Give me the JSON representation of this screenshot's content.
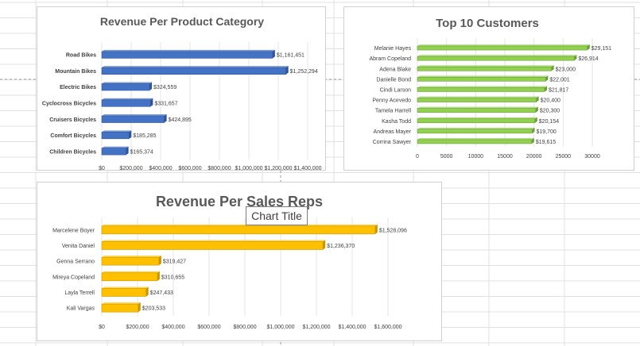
{
  "tooltip": {
    "label": "Chart Title"
  },
  "charts": [
    {
      "id": "product",
      "chart_data": {
        "type": "bar",
        "title": "Revenue Per Product Category",
        "categories": [
          "Road Bikes",
          "Mountain Bikes",
          "Electric Bikes",
          "Cyclocross Bicycles",
          "Cruisers Bicycles",
          "Comfort Bicycles",
          "Children Bicycles"
        ],
        "values": [
          1161451,
          1252294,
          324559,
          331657,
          424895,
          185285,
          165374
        ],
        "data_labels": [
          "$1,161,451",
          "$1,252,294",
          "$324,559",
          "$331,657",
          "$424,895",
          "$185,285",
          "$165,374"
        ],
        "ticks": [
          "$0",
          "$200,000",
          "$400,000",
          "$600,000",
          "$800,000",
          "$1,000,000",
          "$1,200,000",
          "$1,400,000"
        ],
        "xlim": [
          0,
          1400000
        ],
        "bar_color": "#4472c4",
        "bar_edge": "#2f5597"
      }
    },
    {
      "id": "customers",
      "chart_data": {
        "type": "bar",
        "title": "Top 10 Customers",
        "categories": [
          "Melanie Hayes",
          "Abram Copeland",
          "Adena Blake",
          "Danielle Bond",
          "Cindi Larson",
          "Penny Acevedo",
          "Tamela Harrell",
          "Kasha Todd",
          "Andreas Mayer",
          "Corrina Sawyer"
        ],
        "values": [
          29151,
          26914,
          23000,
          22001,
          21817,
          20400,
          20300,
          20154,
          19700,
          19615
        ],
        "data_labels": [
          "$29,151",
          "$26,914",
          "$23,000",
          "$22,001",
          "$21,817",
          "$20,400",
          "$20,300",
          "$20,154",
          "$19,700",
          "$19,615"
        ],
        "ticks": [
          "0",
          "5000",
          "10000",
          "15000",
          "20000",
          "25000",
          "30000"
        ],
        "xlim": [
          0,
          30000
        ],
        "bar_color": "#92d050",
        "bar_edge": "#6a9e3a"
      }
    },
    {
      "id": "reps",
      "chart_data": {
        "type": "bar",
        "title": "Revenue Per Sales Reps",
        "categories": [
          "Marcelene Boyer",
          "Venita Daniel",
          "Genna Serrano",
          "Mireya Copeland",
          "Layla Terrell",
          "Kali Vargas"
        ],
        "values": [
          1528096,
          1236370,
          319427,
          310655,
          247433,
          203533
        ],
        "data_labels": [
          "$1,528,096",
          "$1,236,370",
          "$319,427",
          "$310,655",
          "$247,433",
          "$203,533"
        ],
        "ticks": [
          "$0",
          "$200,000",
          "$400,000",
          "$600,000",
          "$800,000",
          "$1,000,000",
          "$1,200,000",
          "$1,400,000",
          "$1,600,000"
        ],
        "xlim": [
          0,
          1600000
        ],
        "bar_color": "#ffc000",
        "bar_edge": "#c99700"
      }
    }
  ]
}
